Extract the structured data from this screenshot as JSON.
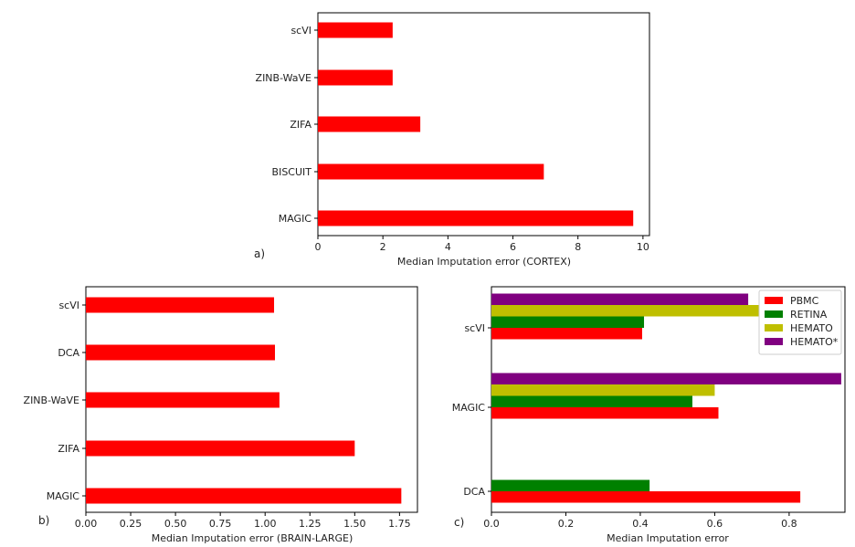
{
  "chart_data": [
    {
      "id": "a",
      "panel_label": "a)",
      "type": "bar",
      "orientation": "horizontal",
      "categories": [
        "scVI",
        "ZINB-WaVE",
        "ZIFA",
        "BISCUIT",
        "MAGIC"
      ],
      "values": [
        2.3,
        2.3,
        3.15,
        6.95,
        9.7
      ],
      "xlabel": "Median Imputation error (CORTEX)",
      "xlim": [
        0,
        10.2
      ],
      "xticks": [
        0,
        2,
        4,
        6,
        8,
        10
      ],
      "xtick_labels": [
        "0",
        "2",
        "4",
        "6",
        "8",
        "10"
      ],
      "color": "#ff0000"
    },
    {
      "id": "b",
      "panel_label": "b)",
      "type": "bar",
      "orientation": "horizontal",
      "categories": [
        "scVI",
        "DCA",
        "ZINB-WaVE",
        "ZIFA",
        "MAGIC"
      ],
      "values": [
        1.05,
        1.055,
        1.08,
        1.5,
        1.76
      ],
      "xlabel": "Median Imputation error (BRAIN-LARGE)",
      "xlim": [
        0,
        1.85
      ],
      "xticks": [
        0,
        0.25,
        0.5,
        0.75,
        1.0,
        1.25,
        1.5,
        1.75
      ],
      "xtick_labels": [
        "0.00",
        "0.25",
        "0.50",
        "0.75",
        "1.00",
        "1.25",
        "1.50",
        "1.75"
      ],
      "color": "#ff0000"
    },
    {
      "id": "c",
      "panel_label": "c)",
      "type": "bar",
      "orientation": "horizontal",
      "categories": [
        "scVI",
        "MAGIC",
        "DCA"
      ],
      "series": [
        {
          "name": "PBMC",
          "color": "#ff0000",
          "values": [
            0.405,
            0.61,
            0.83
          ]
        },
        {
          "name": "RETINA",
          "color": "#008000",
          "values": [
            0.41,
            0.54,
            0.425
          ]
        },
        {
          "name": "HEMATO",
          "color": "#bfbf00",
          "values": [
            0.86,
            0.6,
            null
          ]
        },
        {
          "name": "HEMATO*",
          "color": "#800080",
          "values": [
            0.69,
            0.94,
            null
          ]
        }
      ],
      "xlabel": "Median Imputation error",
      "xlim": [
        0,
        0.95
      ],
      "xticks": [
        0,
        0.2,
        0.4,
        0.6,
        0.8
      ],
      "xtick_labels": [
        "0.0",
        "0.2",
        "0.4",
        "0.6",
        "0.8"
      ],
      "legend_position": "top-right"
    }
  ]
}
